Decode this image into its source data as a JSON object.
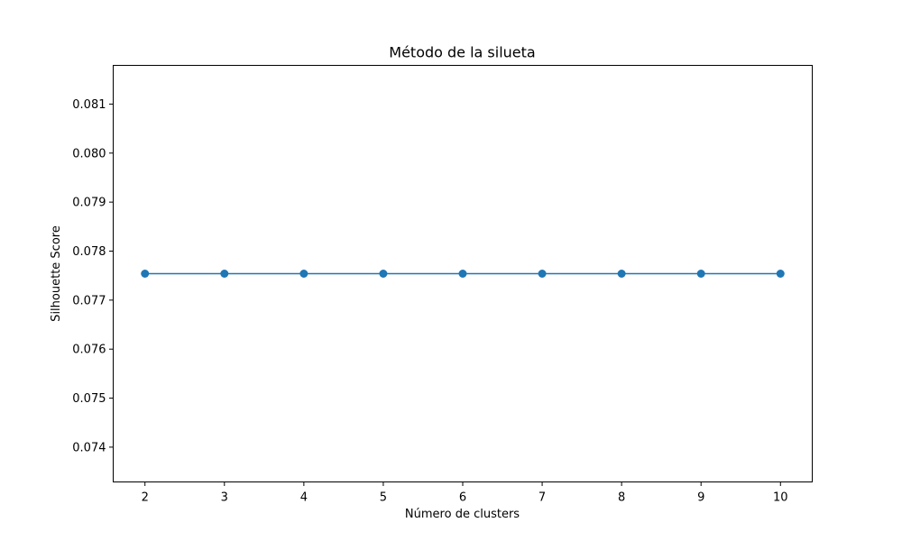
{
  "chart_data": {
    "type": "line",
    "title": "Método de la silueta",
    "xlabel": "Número de clusters",
    "ylabel": "Silhouette Score",
    "x": [
      2,
      3,
      4,
      5,
      6,
      7,
      8,
      9,
      10
    ],
    "series": [
      {
        "values": [
          0.07754,
          0.07754,
          0.07754,
          0.07754,
          0.07754,
          0.07754,
          0.07754,
          0.07754,
          0.07754
        ],
        "color": "#1f77b4",
        "marker": "circle"
      }
    ],
    "xticks": [
      "2",
      "3",
      "4",
      "5",
      "6",
      "7",
      "8",
      "9",
      "10"
    ],
    "yticks": [
      "0.074",
      "0.075",
      "0.076",
      "0.077",
      "0.078",
      "0.079",
      "0.080",
      "0.081"
    ],
    "xlim": [
      1.6,
      10.4
    ],
    "ylim": [
      0.07329,
      0.08179
    ],
    "grid": false,
    "legend": false
  }
}
